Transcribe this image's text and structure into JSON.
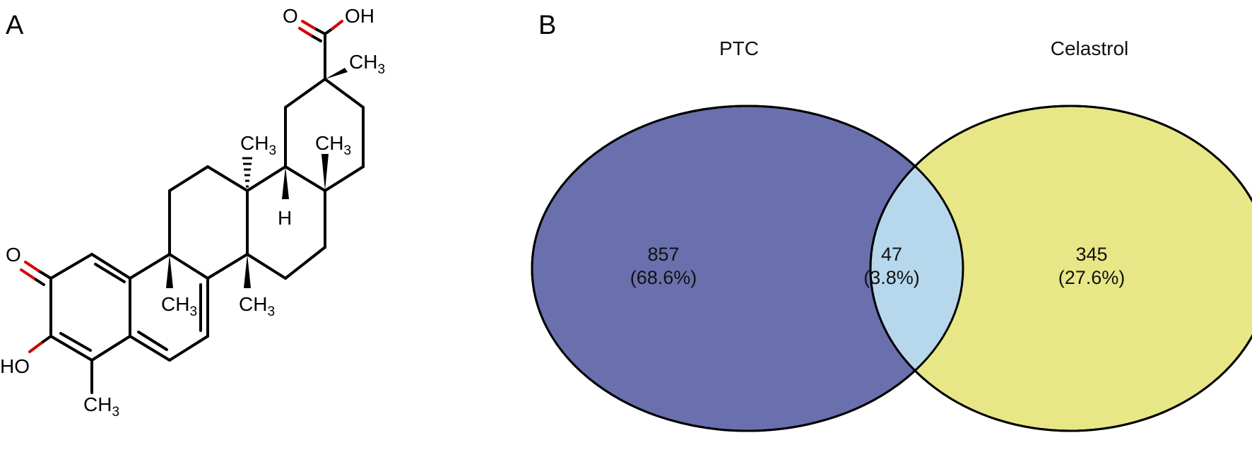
{
  "panel_a": {
    "letter": "A",
    "atoms": {
      "carbonyl_o": "O",
      "acid_o": "O",
      "acid_oh": "OH",
      "hydroxyl": "HO",
      "methyl": "CH",
      "methyl_sub": "3",
      "h": "H"
    }
  },
  "panel_b": {
    "letter": "B",
    "sets": [
      {
        "name": "PTC",
        "color": "#6a70ae"
      },
      {
        "name": "Celastrol",
        "color": "#e8e787"
      }
    ],
    "intersection_color": "#b7d8ec",
    "regions": [
      {
        "set": "PTC only",
        "count": "857",
        "percent": "(68.6%)"
      },
      {
        "set": "PTC ∩ Celastrol",
        "count": "47",
        "percent": "(3.8%)"
      },
      {
        "set": "Celastrol only",
        "count": "345",
        "percent": "(27.6%)"
      }
    ]
  }
}
